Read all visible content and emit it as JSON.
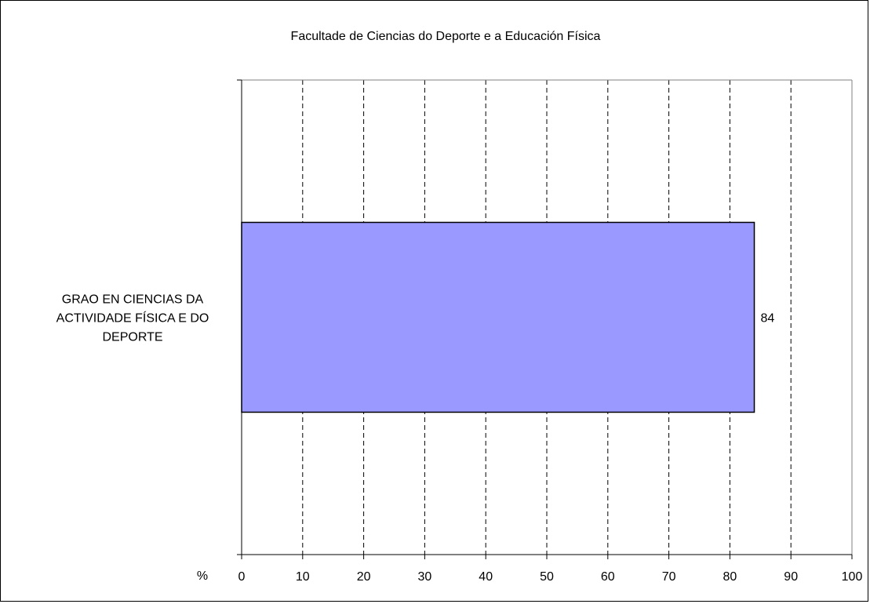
{
  "chart_data": {
    "type": "bar",
    "orientation": "horizontal",
    "title": "Facultade de Ciencias do Deporte e a Educación Física",
    "categories": [
      "GRAO EN CIENCIAS DA ACTIVIDADE FÍSICA E DO DEPORTE"
    ],
    "category_label_lines": [
      [
        "GRAO EN CIENCIAS DA",
        "ACTIVIDADE FÍSICA E DO",
        "DEPORTE"
      ]
    ],
    "values": [
      84
    ],
    "data_labels": [
      "84"
    ],
    "xlabel": "%",
    "ylabel": "",
    "xlim": [
      0,
      100
    ],
    "x_ticks": [
      0,
      10,
      20,
      30,
      40,
      50,
      60,
      70,
      80,
      90,
      100
    ],
    "grid": "vertical dashed",
    "legend": "none",
    "colors": {
      "bar": "#9999ff",
      "bar_border": "#000000",
      "grid": "#000000"
    }
  }
}
